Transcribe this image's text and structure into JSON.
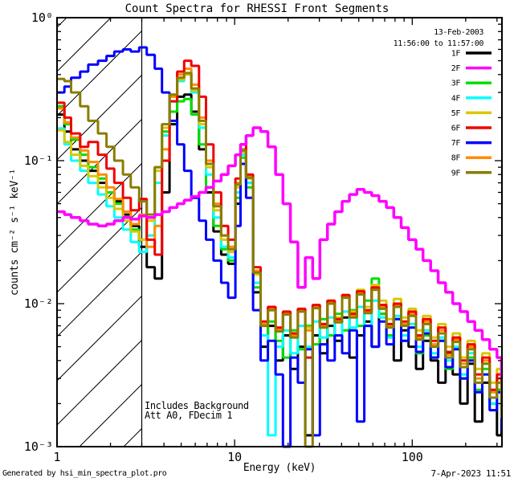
{
  "title": "Count Spectra for RHESSI Front Segments",
  "header": {
    "date": "13-Feb-2003",
    "time_range": "11:56:00 to 11:57:00"
  },
  "legend": [
    {
      "label": "1F",
      "color": "#000000"
    },
    {
      "label": "2F",
      "color": "#ff00ff"
    },
    {
      "label": "3F",
      "color": "#00dd00"
    },
    {
      "label": "4F",
      "color": "#00ffff"
    },
    {
      "label": "5F",
      "color": "#d8c800"
    },
    {
      "label": "6F",
      "color": "#f00000"
    },
    {
      "label": "7F",
      "color": "#0000ff"
    },
    {
      "label": "8F",
      "color": "#ff8c00"
    },
    {
      "label": "9F",
      "color": "#8a7d00"
    }
  ],
  "axes": {
    "xlabel": "Energy (keV)",
    "ylabel": "counts cm⁻² s⁻¹ keV⁻¹",
    "x_ticks": [
      {
        "value": 1,
        "label": "1"
      },
      {
        "value": 10,
        "label": "10"
      },
      {
        "value": 100,
        "label": "100"
      }
    ],
    "y_ticks": [
      {
        "value": 1,
        "label": "10⁰"
      },
      {
        "value": 0.1,
        "label": "10⁻¹"
      },
      {
        "value": 0.01,
        "label": "10⁻²"
      },
      {
        "value": 0.001,
        "label": "10⁻³"
      }
    ]
  },
  "annotations": {
    "background": "Includes Background",
    "attenuator": "Att A0, FDecim 1"
  },
  "footer": {
    "generated_by": "Generated by hsi_min_spectra_plot.pro",
    "printed": "7-Apr-2023 11:51"
  },
  "chart_data": {
    "type": "line",
    "xscale": "log",
    "yscale": "log",
    "xlim": [
      1,
      320
    ],
    "ylim": [
      0.001,
      1
    ],
    "grid": false,
    "legend_position": "top-right-inside",
    "hatch_region": {
      "x_start": 1,
      "x_end": 3.0,
      "style": "diagonal-hatch"
    },
    "x_keV": [
      1.0,
      1.1,
      1.2,
      1.35,
      1.5,
      1.7,
      1.9,
      2.1,
      2.35,
      2.6,
      2.9,
      3.2,
      3.55,
      3.9,
      4.3,
      4.75,
      5.2,
      5.7,
      6.3,
      6.9,
      7.6,
      8.4,
      9.2,
      10.1,
      10.8,
      11.6,
      12.7,
      14.0,
      15.4,
      17.0,
      18.7,
      20.6,
      22.7,
      25.0,
      27.5,
      30.2,
      33.3,
      36.6,
      40.3,
      44.3,
      48.8,
      53.7,
      59.1,
      65.0,
      71.5,
      78.7,
      86.6,
      95.3,
      105,
      115,
      127,
      140,
      154,
      169,
      186,
      205,
      225,
      248,
      273,
      300,
      318
    ],
    "draw_order": [
      "1F",
      "3F",
      "4F",
      "5F",
      "8F",
      "6F",
      "7F",
      "9F",
      "2F"
    ],
    "series": [
      {
        "name": "1F",
        "color": "#000000",
        "values": [
          0.21,
          0.16,
          0.12,
          0.1,
          0.085,
          0.07,
          0.06,
          0.052,
          0.042,
          0.035,
          0.025,
          0.018,
          0.015,
          0.06,
          0.18,
          0.28,
          0.29,
          0.22,
          0.12,
          0.06,
          0.032,
          0.022,
          0.019,
          0.05,
          0.12,
          0.07,
          0.012,
          0.005,
          0.007,
          0.004,
          0.006,
          0.0035,
          0.005,
          0.0012,
          0.006,
          0.0045,
          0.007,
          0.0055,
          0.008,
          0.0042,
          0.006,
          0.0075,
          0.005,
          0.0085,
          0.006,
          0.004,
          0.0065,
          0.005,
          0.0035,
          0.0055,
          0.004,
          0.0028,
          0.0045,
          0.0032,
          0.002,
          0.0038,
          0.0015,
          0.0028,
          0.002,
          0.0012,
          0.0015
        ]
      },
      {
        "name": "2F",
        "color": "#ff00ff",
        "values": [
          0.044,
          0.042,
          0.04,
          0.038,
          0.036,
          0.035,
          0.036,
          0.038,
          0.04,
          0.039,
          0.041,
          0.04,
          0.042,
          0.044,
          0.047,
          0.05,
          0.053,
          0.056,
          0.06,
          0.065,
          0.072,
          0.08,
          0.092,
          0.11,
          0.13,
          0.15,
          0.17,
          0.16,
          0.125,
          0.08,
          0.05,
          0.027,
          0.013,
          0.021,
          0.015,
          0.028,
          0.036,
          0.044,
          0.052,
          0.058,
          0.063,
          0.06,
          0.057,
          0.052,
          0.047,
          0.04,
          0.034,
          0.028,
          0.024,
          0.02,
          0.017,
          0.014,
          0.012,
          0.01,
          0.0088,
          0.0075,
          0.0065,
          0.0056,
          0.0048,
          0.0042,
          0.003
        ]
      },
      {
        "name": "3F",
        "color": "#00dd00",
        "values": [
          0.24,
          0.18,
          0.14,
          0.11,
          0.09,
          0.075,
          0.06,
          0.05,
          0.04,
          0.033,
          0.028,
          0.04,
          0.09,
          0.16,
          0.22,
          0.26,
          0.27,
          0.21,
          0.13,
          0.065,
          0.035,
          0.024,
          0.02,
          0.055,
          0.105,
          0.065,
          0.013,
          0.006,
          0.0075,
          0.0055,
          0.0042,
          0.0065,
          0.0048,
          0.007,
          0.0052,
          0.0078,
          0.006,
          0.0085,
          0.0065,
          0.009,
          0.007,
          0.0105,
          0.015,
          0.0085,
          0.006,
          0.0078,
          0.0055,
          0.0068,
          0.0045,
          0.006,
          0.0042,
          0.0055,
          0.0035,
          0.0048,
          0.003,
          0.0042,
          0.0025,
          0.0035,
          0.0018,
          0.0025,
          0.0015
        ]
      },
      {
        "name": "4F",
        "color": "#00ffff",
        "values": [
          0.168,
          0.13,
          0.1,
          0.085,
          0.07,
          0.058,
          0.048,
          0.04,
          0.033,
          0.027,
          0.023,
          0.03,
          0.07,
          0.15,
          0.26,
          0.36,
          0.4,
          0.3,
          0.17,
          0.08,
          0.04,
          0.025,
          0.021,
          0.06,
          0.11,
          0.07,
          0.014,
          0.006,
          0.0012,
          0.005,
          0.0065,
          0.0045,
          0.007,
          0.005,
          0.0075,
          0.0058,
          0.008,
          0.006,
          0.0088,
          0.0068,
          0.0095,
          0.007,
          0.0105,
          0.008,
          0.0058,
          0.0082,
          0.006,
          0.0072,
          0.005,
          0.0065,
          0.0045,
          0.0058,
          0.004,
          0.005,
          0.0032,
          0.0045,
          0.0028,
          0.0038,
          0.002,
          0.0028,
          0.0016
        ]
      },
      {
        "name": "5F",
        "color": "#d8c800",
        "values": [
          0.163,
          0.135,
          0.11,
          0.092,
          0.078,
          0.065,
          0.055,
          0.046,
          0.038,
          0.032,
          0.028,
          0.038,
          0.085,
          0.17,
          0.28,
          0.37,
          0.4,
          0.31,
          0.18,
          0.09,
          0.045,
          0.028,
          0.023,
          0.065,
          0.115,
          0.075,
          0.016,
          0.007,
          0.009,
          0.0065,
          0.0085,
          0.006,
          0.009,
          0.0068,
          0.0095,
          0.0072,
          0.0105,
          0.008,
          0.0115,
          0.0088,
          0.0125,
          0.0095,
          0.0135,
          0.0105,
          0.0078,
          0.0108,
          0.008,
          0.0092,
          0.0065,
          0.0082,
          0.0058,
          0.0072,
          0.005,
          0.0062,
          0.0042,
          0.0055,
          0.0035,
          0.0045,
          0.0028,
          0.0035,
          0.002
        ]
      },
      {
        "name": "6F",
        "color": "#f00000",
        "values": [
          0.254,
          0.2,
          0.155,
          0.125,
          0.135,
          0.11,
          0.088,
          0.07,
          0.055,
          0.045,
          0.054,
          0.028,
          0.022,
          0.1,
          0.26,
          0.42,
          0.5,
          0.46,
          0.28,
          0.13,
          0.06,
          0.035,
          0.028,
          0.075,
          0.13,
          0.08,
          0.018,
          0.0075,
          0.0095,
          0.0068,
          0.0088,
          0.0062,
          0.0092,
          0.0042,
          0.0098,
          0.0072,
          0.0105,
          0.0078,
          0.0115,
          0.0085,
          0.0122,
          0.009,
          0.013,
          0.0098,
          0.0072,
          0.01,
          0.0075,
          0.0088,
          0.006,
          0.0078,
          0.0055,
          0.0068,
          0.0046,
          0.0058,
          0.004,
          0.0052,
          0.0032,
          0.0042,
          0.0025,
          0.0032,
          0.0018
        ]
      },
      {
        "name": "7F",
        "color": "#0000ff",
        "values": [
          0.3,
          0.33,
          0.38,
          0.42,
          0.47,
          0.5,
          0.54,
          0.58,
          0.6,
          0.58,
          0.62,
          0.55,
          0.44,
          0.3,
          0.19,
          0.13,
          0.085,
          0.055,
          0.038,
          0.028,
          0.02,
          0.014,
          0.011,
          0.035,
          0.095,
          0.055,
          0.009,
          0.004,
          0.0055,
          0.0032,
          0.001,
          0.0042,
          0.0028,
          0.0048,
          0.0012,
          0.0052,
          0.004,
          0.006,
          0.0045,
          0.0065,
          0.0015,
          0.007,
          0.005,
          0.0075,
          0.0052,
          0.0078,
          0.0055,
          0.0068,
          0.0046,
          0.0062,
          0.0042,
          0.0055,
          0.0036,
          0.0048,
          0.003,
          0.004,
          0.0024,
          0.0032,
          0.0018,
          0.0024,
          0.0013
        ]
      },
      {
        "name": "8F",
        "color": "#ff8c00",
        "values": [
          0.232,
          0.185,
          0.145,
          0.118,
          0.098,
          0.08,
          0.065,
          0.054,
          0.044,
          0.036,
          0.042,
          0.025,
          0.035,
          0.12,
          0.28,
          0.4,
          0.44,
          0.34,
          0.2,
          0.1,
          0.05,
          0.03,
          0.025,
          0.07,
          0.12,
          0.078,
          0.017,
          0.0072,
          0.0092,
          0.0066,
          0.0086,
          0.006,
          0.009,
          0.0065,
          0.0095,
          0.007,
          0.0102,
          0.0076,
          0.0112,
          0.0082,
          0.0118,
          0.0088,
          0.0128,
          0.0095,
          0.007,
          0.0098,
          0.0072,
          0.0085,
          0.0058,
          0.0075,
          0.0052,
          0.0065,
          0.0044,
          0.0056,
          0.0038,
          0.005,
          0.003,
          0.004,
          0.0024,
          0.003,
          0.0017
        ]
      },
      {
        "name": "9F",
        "color": "#8a7d00",
        "values": [
          0.373,
          0.36,
          0.3,
          0.24,
          0.19,
          0.155,
          0.125,
          0.1,
          0.08,
          0.065,
          0.052,
          0.042,
          0.09,
          0.18,
          0.29,
          0.38,
          0.41,
          0.32,
          0.19,
          0.095,
          0.048,
          0.03,
          0.024,
          0.068,
          0.118,
          0.076,
          0.0165,
          0.007,
          0.009,
          0.0064,
          0.0084,
          0.0058,
          0.0088,
          0.001,
          0.0093,
          0.0068,
          0.01,
          0.0074,
          0.011,
          0.008,
          0.0116,
          0.0086,
          0.0125,
          0.0092,
          0.0068,
          0.0095,
          0.007,
          0.0082,
          0.0056,
          0.0072,
          0.005,
          0.0062,
          0.0042,
          0.0054,
          0.0036,
          0.0048,
          0.0028,
          0.0038,
          0.0022,
          0.0028,
          0.0016
        ]
      }
    ]
  }
}
